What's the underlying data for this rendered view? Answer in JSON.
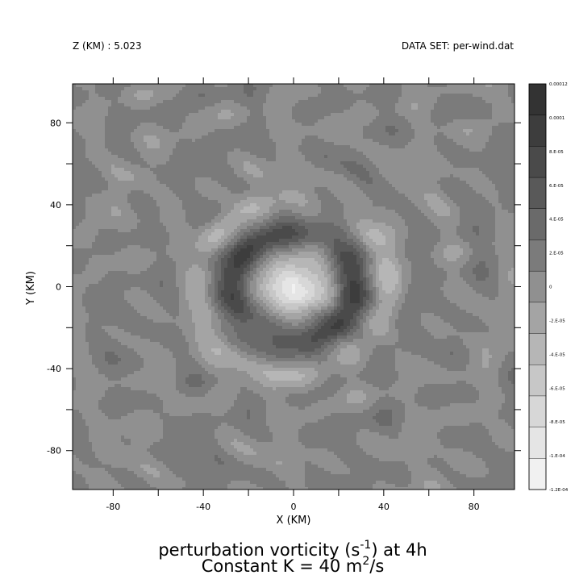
{
  "header": {
    "left": "Z (KM) : 5.023",
    "right": "DATA SET: per-wind.dat"
  },
  "title": {
    "line1_prefix": "perturbation vorticity (s",
    "line1_exp": "-1",
    "line1_suffix": ") at 4h",
    "line2_prefix": "Constant K = 40 m",
    "line2_exp": "2",
    "line2_suffix": "/s"
  },
  "chart_data": {
    "type": "heatmap",
    "xlabel": "X (KM)",
    "ylabel": "Y (KM)",
    "xlim": [
      -98,
      98
    ],
    "ylim": [
      -99,
      99
    ],
    "xticks": [
      -80,
      -40,
      0,
      40,
      80
    ],
    "yticks": [
      -80,
      -40,
      0,
      40,
      80
    ],
    "xtick_labels": [
      "-80",
      "-40",
      "0",
      "40",
      "80"
    ],
    "ytick_labels": [
      "-80",
      "-40",
      "0",
      "40",
      "80"
    ],
    "colorbar": {
      "levels": [
        0.00012,
        0.0001,
        8e-05,
        6e-05,
        4e-05,
        2e-05,
        0,
        -2e-05,
        -4e-05,
        -6e-05,
        -8e-05,
        -0.0001,
        -0.00012
      ],
      "labels": [
        "0.00012",
        "0.0001",
        "8.E-05",
        "6.E-05",
        "4.E-05",
        "2.E-05",
        "0",
        "-2.E-05",
        "-4.E-05",
        "-6.E-05",
        "-8.E-05",
        "-1.E-04",
        "-1.2E-04"
      ],
      "colors": [
        "#333333",
        "#3d3d3d",
        "#4a4a4a",
        "#595959",
        "#6a6a6a",
        "#7b7b7b",
        "#909090",
        "#a4a4a4",
        "#b6b6b6",
        "#c7c7c7",
        "#d7d7d7",
        "#e5e5e5",
        "#f1f1f1"
      ]
    }
  }
}
